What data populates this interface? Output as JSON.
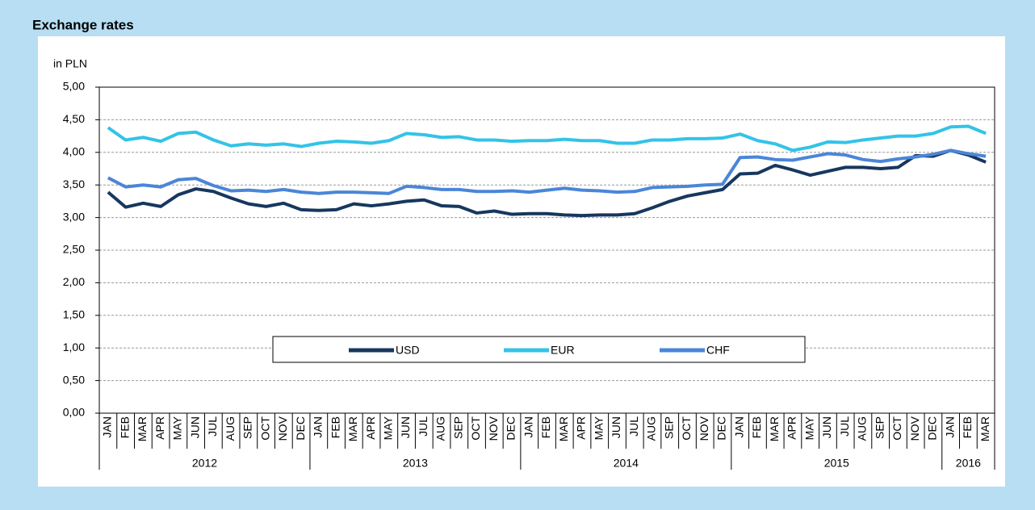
{
  "chart_data": {
    "type": "line",
    "title": "Exchange rates",
    "y_axis_label": "in  PLN",
    "category_groups": [
      {
        "label": "2012",
        "categories": [
          "JAN",
          "FEB",
          "MAR",
          "APR",
          "MAY",
          "JUN",
          "JUL",
          "AUG",
          "SEP",
          "OCT",
          "NOV",
          "DEC"
        ]
      },
      {
        "label": "2013",
        "categories": [
          "JAN",
          "FEB",
          "MAR",
          "APR",
          "MAY",
          "JUN",
          "JUL",
          "AUG",
          "SEP",
          "OCT",
          "NOV",
          "DEC"
        ]
      },
      {
        "label": "2014",
        "categories": [
          "JAN",
          "FEB",
          "MAR",
          "APR",
          "MAY",
          "JUN",
          "JUL",
          "AUG",
          "SEP",
          "OCT",
          "NOV",
          "DEC"
        ]
      },
      {
        "label": "2015",
        "categories": [
          "JAN",
          "FEB",
          "MAR",
          "APR",
          "MAY",
          "JUN",
          "JUL",
          "AUG",
          "SEP",
          "OCT",
          "NOV",
          "DEC"
        ]
      },
      {
        "label": "2016",
        "categories": [
          "JAN",
          "FEB",
          "MAR"
        ]
      }
    ],
    "series": [
      {
        "name": "USD",
        "color": "#17375e",
        "values": [
          3.39,
          3.16,
          3.22,
          3.17,
          3.35,
          3.44,
          3.4,
          3.3,
          3.21,
          3.17,
          3.22,
          3.12,
          3.11,
          3.12,
          3.21,
          3.18,
          3.21,
          3.25,
          3.27,
          3.18,
          3.17,
          3.07,
          3.1,
          3.05,
          3.06,
          3.06,
          3.04,
          3.03,
          3.04,
          3.04,
          3.06,
          3.15,
          3.25,
          3.33,
          3.38,
          3.43,
          3.67,
          3.68,
          3.8,
          3.73,
          3.65,
          3.71,
          3.77,
          3.77,
          3.75,
          3.77,
          3.95,
          3.94,
          4.03,
          3.96,
          3.85
        ]
      },
      {
        "name": "EUR",
        "color": "#33c3e8",
        "values": [
          4.38,
          4.19,
          4.23,
          4.17,
          4.29,
          4.31,
          4.19,
          4.1,
          4.13,
          4.11,
          4.13,
          4.09,
          4.14,
          4.17,
          4.16,
          4.14,
          4.18,
          4.29,
          4.27,
          4.23,
          4.24,
          4.19,
          4.19,
          4.17,
          4.18,
          4.18,
          4.2,
          4.18,
          4.18,
          4.14,
          4.14,
          4.19,
          4.19,
          4.21,
          4.21,
          4.22,
          4.28,
          4.18,
          4.13,
          4.03,
          4.08,
          4.16,
          4.15,
          4.19,
          4.22,
          4.25,
          4.25,
          4.29,
          4.39,
          4.4,
          4.29
        ]
      },
      {
        "name": "CHF",
        "color": "#4a86d8",
        "values": [
          3.61,
          3.47,
          3.5,
          3.47,
          3.58,
          3.6,
          3.49,
          3.41,
          3.42,
          3.4,
          3.43,
          3.39,
          3.37,
          3.39,
          3.39,
          3.38,
          3.37,
          3.48,
          3.46,
          3.43,
          3.43,
          3.4,
          3.4,
          3.41,
          3.39,
          3.42,
          3.45,
          3.42,
          3.41,
          3.39,
          3.4,
          3.46,
          3.47,
          3.48,
          3.5,
          3.51,
          3.92,
          3.93,
          3.89,
          3.88,
          3.93,
          3.98,
          3.96,
          3.89,
          3.86,
          3.9,
          3.93,
          3.97,
          4.03,
          3.98,
          3.94
        ]
      }
    ],
    "ylim": [
      0,
      5
    ],
    "yticks": [
      {
        "value": 0,
        "label": "0,00"
      },
      {
        "value": 0.5,
        "label": "0,50"
      },
      {
        "value": 1,
        "label": "1,00"
      },
      {
        "value": 1.5,
        "label": "1,50"
      },
      {
        "value": 2,
        "label": "2,00"
      },
      {
        "value": 2.5,
        "label": "2,50"
      },
      {
        "value": 3,
        "label": "3,00"
      },
      {
        "value": 3.5,
        "label": "3,50"
      },
      {
        "value": 4,
        "label": "4,00"
      },
      {
        "value": 4.5,
        "label": "4,50"
      },
      {
        "value": 5,
        "label": "5,00"
      }
    ],
    "grid": true,
    "legend": "bottom"
  }
}
